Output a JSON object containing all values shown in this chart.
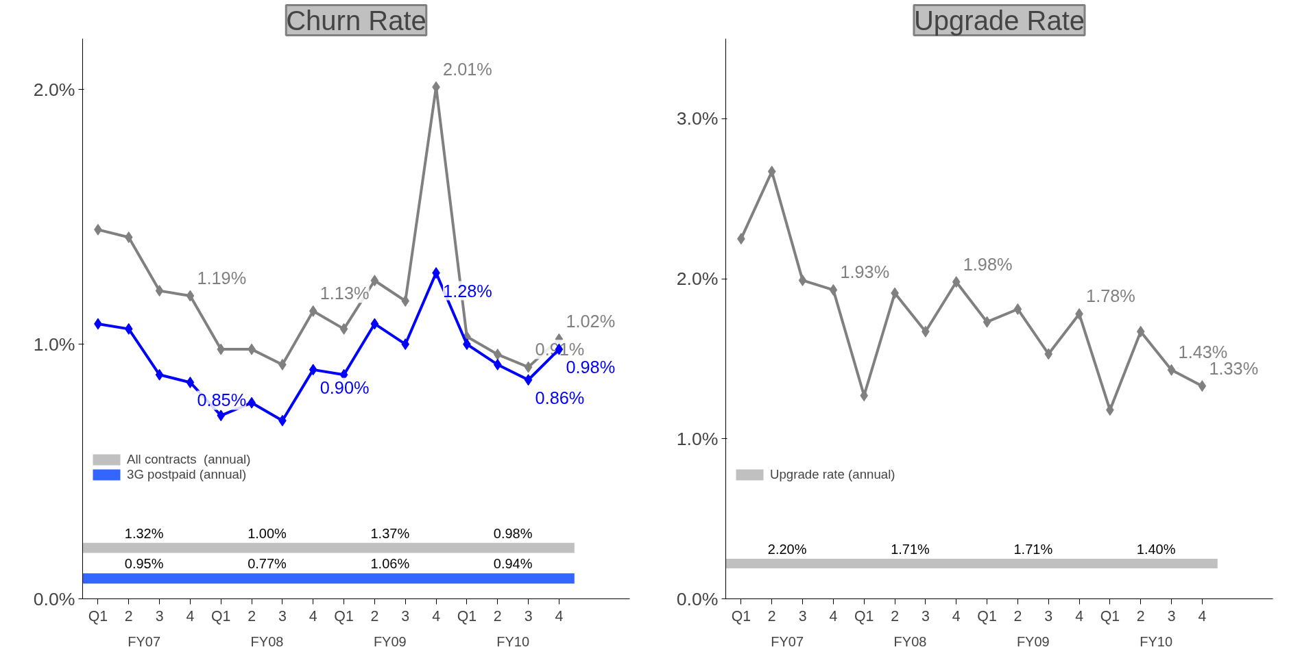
{
  "chart_data": [
    {
      "type": "line",
      "title": "Churn Rate",
      "categories": [
        "Q1",
        "2",
        "3",
        "4",
        "Q1",
        "2",
        "3",
        "4",
        "Q1",
        "2",
        "3",
        "4",
        "Q1",
        "2",
        "3",
        "4"
      ],
      "ylim": [
        0,
        2.2
      ],
      "yticks": [
        {
          "value": 0,
          "label": "0.0%"
        },
        {
          "value": 1,
          "label": "1.0%"
        },
        {
          "value": 2,
          "label": "2.0%"
        }
      ],
      "grid": false,
      "marker": "diamond",
      "legend": "bottom left",
      "series": [
        {
          "color": "#808080",
          "values": [
            1.45,
            1.42,
            1.21,
            1.19,
            0.98,
            0.98,
            0.92,
            1.13,
            1.06,
            1.25,
            1.17,
            2.01,
            1.03,
            0.96,
            0.91,
            1.02
          ],
          "value_labels": [
            null,
            null,
            null,
            "1.19%",
            null,
            null,
            null,
            "1.13%",
            null,
            null,
            null,
            "2.01%",
            null,
            null,
            "0.91%",
            "1.02%"
          ]
        },
        {
          "color": "#0000ff",
          "values": [
            1.08,
            1.06,
            0.88,
            0.85,
            0.72,
            0.77,
            0.7,
            0.9,
            0.88,
            1.08,
            1.0,
            1.28,
            1.0,
            0.92,
            0.86,
            0.98
          ],
          "value_labels": [
            null,
            null,
            null,
            "0.85%",
            null,
            null,
            null,
            "0.90%",
            null,
            null,
            null,
            "1.28%",
            null,
            null,
            "0.86%",
            "0.98%"
          ]
        }
      ],
      "bands": [
        {
          "axis": "y",
          "from": 0.18,
          "to": 0.22,
          "label": "All contracts  (annual)",
          "color": "#c0c0c0"
        },
        {
          "axis": "y",
          "from": 0.06,
          "to": 0.1,
          "label": "3G postpaid (annual)",
          "color": "#3366ff"
        }
      ],
      "annotations": [
        "FY07",
        "FY08",
        "FY09",
        "FY10",
        "1.32%",
        "1.00%",
        "1.37%",
        "0.98%",
        "0.95%",
        "0.77%",
        "1.06%",
        "0.94%"
      ]
    },
    {
      "type": "line",
      "title": "Upgrade Rate",
      "categories": [
        "Q1",
        "2",
        "3",
        "4",
        "Q1",
        "2",
        "3",
        "4",
        "Q1",
        "2",
        "3",
        "4",
        "Q1",
        "2",
        "3",
        "4"
      ],
      "ylim": [
        0,
        3.5
      ],
      "yticks": [
        {
          "value": 0,
          "label": "0.0%"
        },
        {
          "value": 1,
          "label": "1.0%"
        },
        {
          "value": 2,
          "label": "2.0%"
        },
        {
          "value": 3,
          "label": "3.0%"
        }
      ],
      "grid": false,
      "marker": "diamond",
      "legend": "bottom left",
      "series": [
        {
          "color": "#808080",
          "values": [
            2.25,
            2.67,
            1.99,
            1.93,
            1.27,
            1.91,
            1.67,
            1.98,
            1.73,
            1.81,
            1.53,
            1.78,
            1.18,
            1.67,
            1.43,
            1.33
          ],
          "value_labels": [
            null,
            null,
            null,
            "1.93%",
            null,
            null,
            null,
            "1.98%",
            null,
            null,
            null,
            "1.78%",
            null,
            null,
            "1.43%",
            "1.33%"
          ]
        }
      ],
      "bands": [
        {
          "axis": "y",
          "from": 0.19,
          "to": 0.25,
          "label": "Upgrade rate (annual)",
          "color": "#c0c0c0"
        }
      ],
      "annotations": [
        "FY07",
        "FY08",
        "FY09",
        "FY10",
        "2.20%",
        "1.71%",
        "1.71%",
        "1.40%"
      ]
    }
  ]
}
